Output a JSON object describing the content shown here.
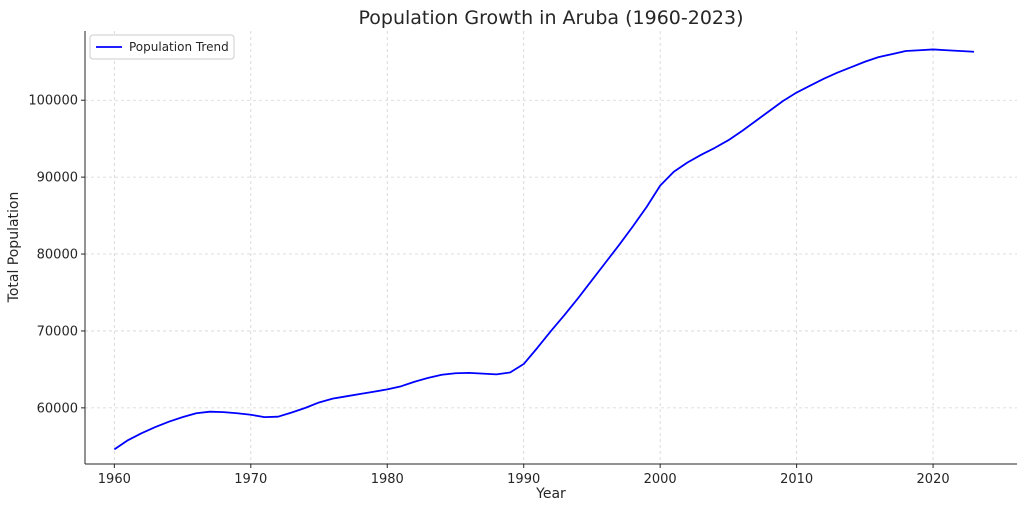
{
  "chart_data": {
    "type": "line",
    "title": "Population Growth in Aruba (1960-2023)",
    "xlabel": "Year",
    "ylabel": "Total Population",
    "xlim": [
      1957.85,
      2026.15
    ],
    "ylim": [
      52700,
      109000
    ],
    "xticks": [
      1960,
      1970,
      1980,
      1990,
      2000,
      2010,
      2020
    ],
    "yticks": [
      60000,
      70000,
      80000,
      90000,
      100000
    ],
    "grid": true,
    "legend": {
      "placement": "top-left",
      "entries": [
        "Population Trend"
      ]
    },
    "series": [
      {
        "name": "Population Trend",
        "color": "#0000ff",
        "x": [
          1960,
          1961,
          1962,
          1963,
          1964,
          1965,
          1966,
          1967,
          1968,
          1969,
          1970,
          1971,
          1972,
          1973,
          1974,
          1975,
          1976,
          1977,
          1978,
          1979,
          1980,
          1981,
          1982,
          1983,
          1984,
          1985,
          1986,
          1987,
          1988,
          1989,
          1990,
          1991,
          1992,
          1993,
          1994,
          1995,
          1996,
          1997,
          1998,
          1999,
          2000,
          2001,
          2002,
          2003,
          2004,
          2005,
          2006,
          2007,
          2008,
          2009,
          2010,
          2011,
          2012,
          2013,
          2014,
          2015,
          2016,
          2017,
          2018,
          2019,
          2020,
          2021,
          2022,
          2023
        ],
        "values": [
          54600,
          55800,
          56700,
          57500,
          58200,
          58800,
          59300,
          59500,
          59450,
          59300,
          59100,
          58800,
          58850,
          59400,
          60000,
          60700,
          61200,
          61500,
          61800,
          62100,
          62400,
          62800,
          63400,
          63900,
          64300,
          64500,
          64550,
          64450,
          64350,
          64600,
          65700,
          67800,
          70000,
          72100,
          74300,
          76600,
          78900,
          81200,
          83600,
          86100,
          88900,
          90700,
          91900,
          92900,
          93800,
          94800,
          96000,
          97300,
          98600,
          99900,
          101000,
          101900,
          102800,
          103600,
          104300,
          105000,
          105600,
          106000,
          106400,
          106500,
          106600,
          106500,
          106400,
          106300
        ]
      }
    ]
  }
}
